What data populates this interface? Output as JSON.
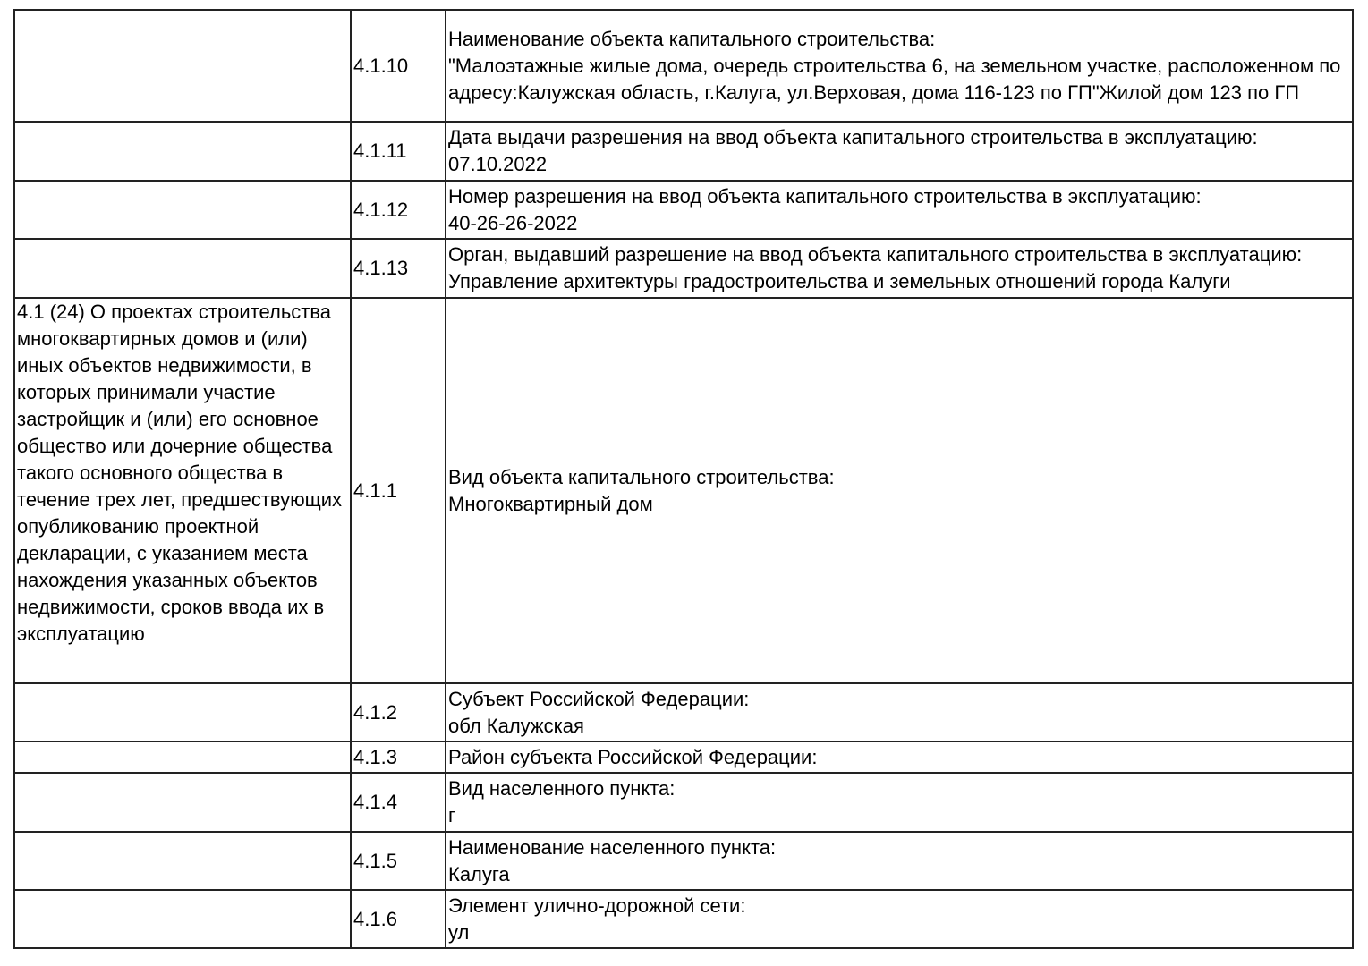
{
  "rows": [
    {
      "section": "",
      "num": "4.1.10",
      "label": "Наименование объекта капитального строительства:",
      "value": "\"Малоэтажные жилые дома, очередь строительства 6, на земельном участке, расположенном по адресу:Калужская область, г.Калуга, ул.Верховая, дома 116-123 по ГП\"Жилой дом 123 по ГП"
    },
    {
      "section": "",
      "num": "4.1.11",
      "label": "Дата выдачи разрешения на ввод объекта капитального строительства в эксплуатацию:",
      "value": "07.10.2022"
    },
    {
      "section": "",
      "num": "4.1.12",
      "label": "Номер разрешения на ввод объекта капитального строительства в эксплуатацию:",
      "value": "40-26-26-2022"
    },
    {
      "section": "",
      "num": "4.1.13",
      "label": "Орган, выдавший разрешение на ввод объекта капитального строительства в эксплуатацию:",
      "value": "Управление архитектуры градостроительства и земельных отношений города Калуги"
    },
    {
      "section": "4.1 (24) О проектах строительства многоквартирных домов и (или) иных объектов недвижимости, в которых принимали участие застройщик и (или) его основное общество или дочерние общества такого основного общества в течение трех лет, предшествующих опубликованию проектной декларации, с указанием места нахождения указанных объектов недвижимости, сроков ввода их в эксплуатацию",
      "num": "4.1.1",
      "label": "Вид объекта капитального строительства:",
      "value": "Многоквартирный дом"
    },
    {
      "section": "",
      "num": "4.1.2",
      "label": "Субъект Российской Федерации:",
      "value": "обл Калужская"
    },
    {
      "section": "",
      "num": "4.1.3",
      "label": "Район субъекта Российской Федерации:",
      "value": ""
    },
    {
      "section": "",
      "num": "4.1.4",
      "label": "Вид населенного пункта:",
      "value": "г"
    },
    {
      "section": "",
      "num": "4.1.5",
      "label": "Наименование населенного пункта:",
      "value": "Калуга"
    },
    {
      "section": "",
      "num": "4.1.6",
      "label": "Элемент улично-дорожной сети:",
      "value": "ул"
    }
  ]
}
